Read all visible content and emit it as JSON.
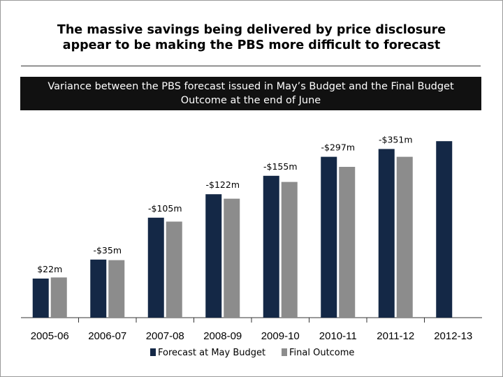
{
  "header": {
    "title_line1": "The massive savings being delivered by price disclosure",
    "title_line2": "appear to be making the PBS more difficult to forecast",
    "banner_line1": "Variance between the PBS forecast issued in May’s Budget and the Final Budget",
    "banner_line2": "Outcome at the end of June"
  },
  "chart_data": {
    "type": "bar",
    "categories": [
      "2005-06",
      "2006-07",
      "2007-08",
      "2008-09",
      "2009-10",
      "2010-11",
      "2011-12",
      "2012-13"
    ],
    "series": [
      {
        "name": "Forecast at May Budget",
        "color": "#142846",
        "values": [
          7.0,
          10.4,
          17.9,
          22.1,
          25.4,
          28.8,
          30.2,
          31.6
        ]
      },
      {
        "name": "Final Outcome",
        "color": "#8c8c8c",
        "values": [
          7.2,
          10.3,
          17.2,
          21.3,
          24.3,
          27.0,
          28.8,
          null
        ]
      }
    ],
    "data_labels": [
      "$22m",
      "-$35m",
      "-$105m",
      "-$122m",
      "-$155m",
      "-$297m",
      "-$351m",
      ""
    ],
    "ylim": [
      0,
      35
    ],
    "grid": false,
    "legend": "bottom",
    "title": "",
    "xlabel": "",
    "ylabel": ""
  }
}
